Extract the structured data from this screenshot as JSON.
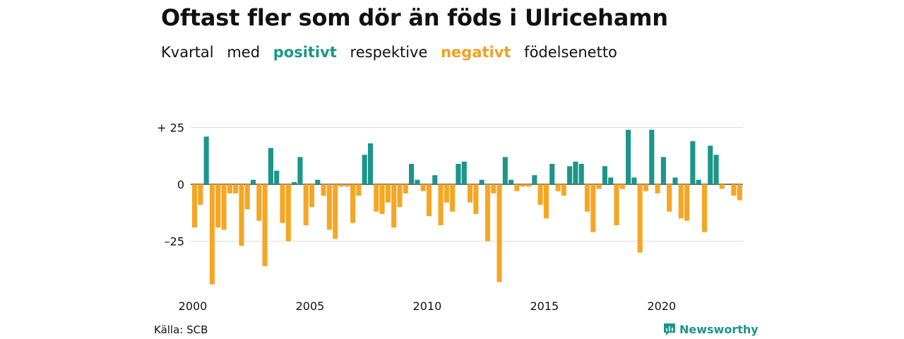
{
  "title": "Oftast fler som dör än föds i Ulricehamn",
  "subtitle": {
    "w1": "Kvartal",
    "w2": "med",
    "positive": "positivt",
    "w3": "respektive",
    "negative": "negativt",
    "w4": "födelsenetto"
  },
  "source": "Källa: SCB",
  "brand": "Newsworthy",
  "colors": {
    "positive": "#1b9688",
    "negative": "#f5a623",
    "grid": "#dddddd"
  },
  "chart_data": {
    "type": "bar",
    "x_start": 2000,
    "periods_per_year": 4,
    "ylim": [
      -45,
      28
    ],
    "yticks": [
      25,
      0,
      -25
    ],
    "ytick_labels": [
      "+ 25",
      "0",
      "–25"
    ],
    "xticks": [
      2000,
      2005,
      2010,
      2015,
      2020
    ],
    "xtick_labels": [
      "2000",
      "2005",
      "2010",
      "2015",
      "2020"
    ],
    "grid": true,
    "values": [
      -19,
      -9,
      21,
      -44,
      -19,
      -20,
      -4,
      -4,
      -27,
      -11,
      2,
      -16,
      -36,
      16,
      6,
      -17,
      -25,
      1,
      12,
      -18,
      -10,
      2,
      -5,
      -20,
      -24,
      -1,
      -1,
      -17,
      -5,
      13,
      18,
      -12,
      -13,
      -8,
      -19,
      -10,
      -4,
      9,
      2,
      -3,
      -14,
      4,
      -18,
      -8,
      -12,
      9,
      10,
      -8,
      -13,
      2,
      -25,
      -4,
      -43,
      12,
      2,
      -3,
      -1,
      -1,
      4,
      -9,
      -15,
      9,
      -3,
      -5,
      8,
      10,
      9,
      -12,
      -21,
      -2,
      8,
      3,
      -18,
      -2,
      24,
      3,
      -30,
      -3,
      24,
      -4,
      12,
      -12,
      3,
      -15,
      -16,
      19,
      2,
      -21,
      17,
      13,
      -2,
      0,
      -5,
      -7
    ]
  }
}
